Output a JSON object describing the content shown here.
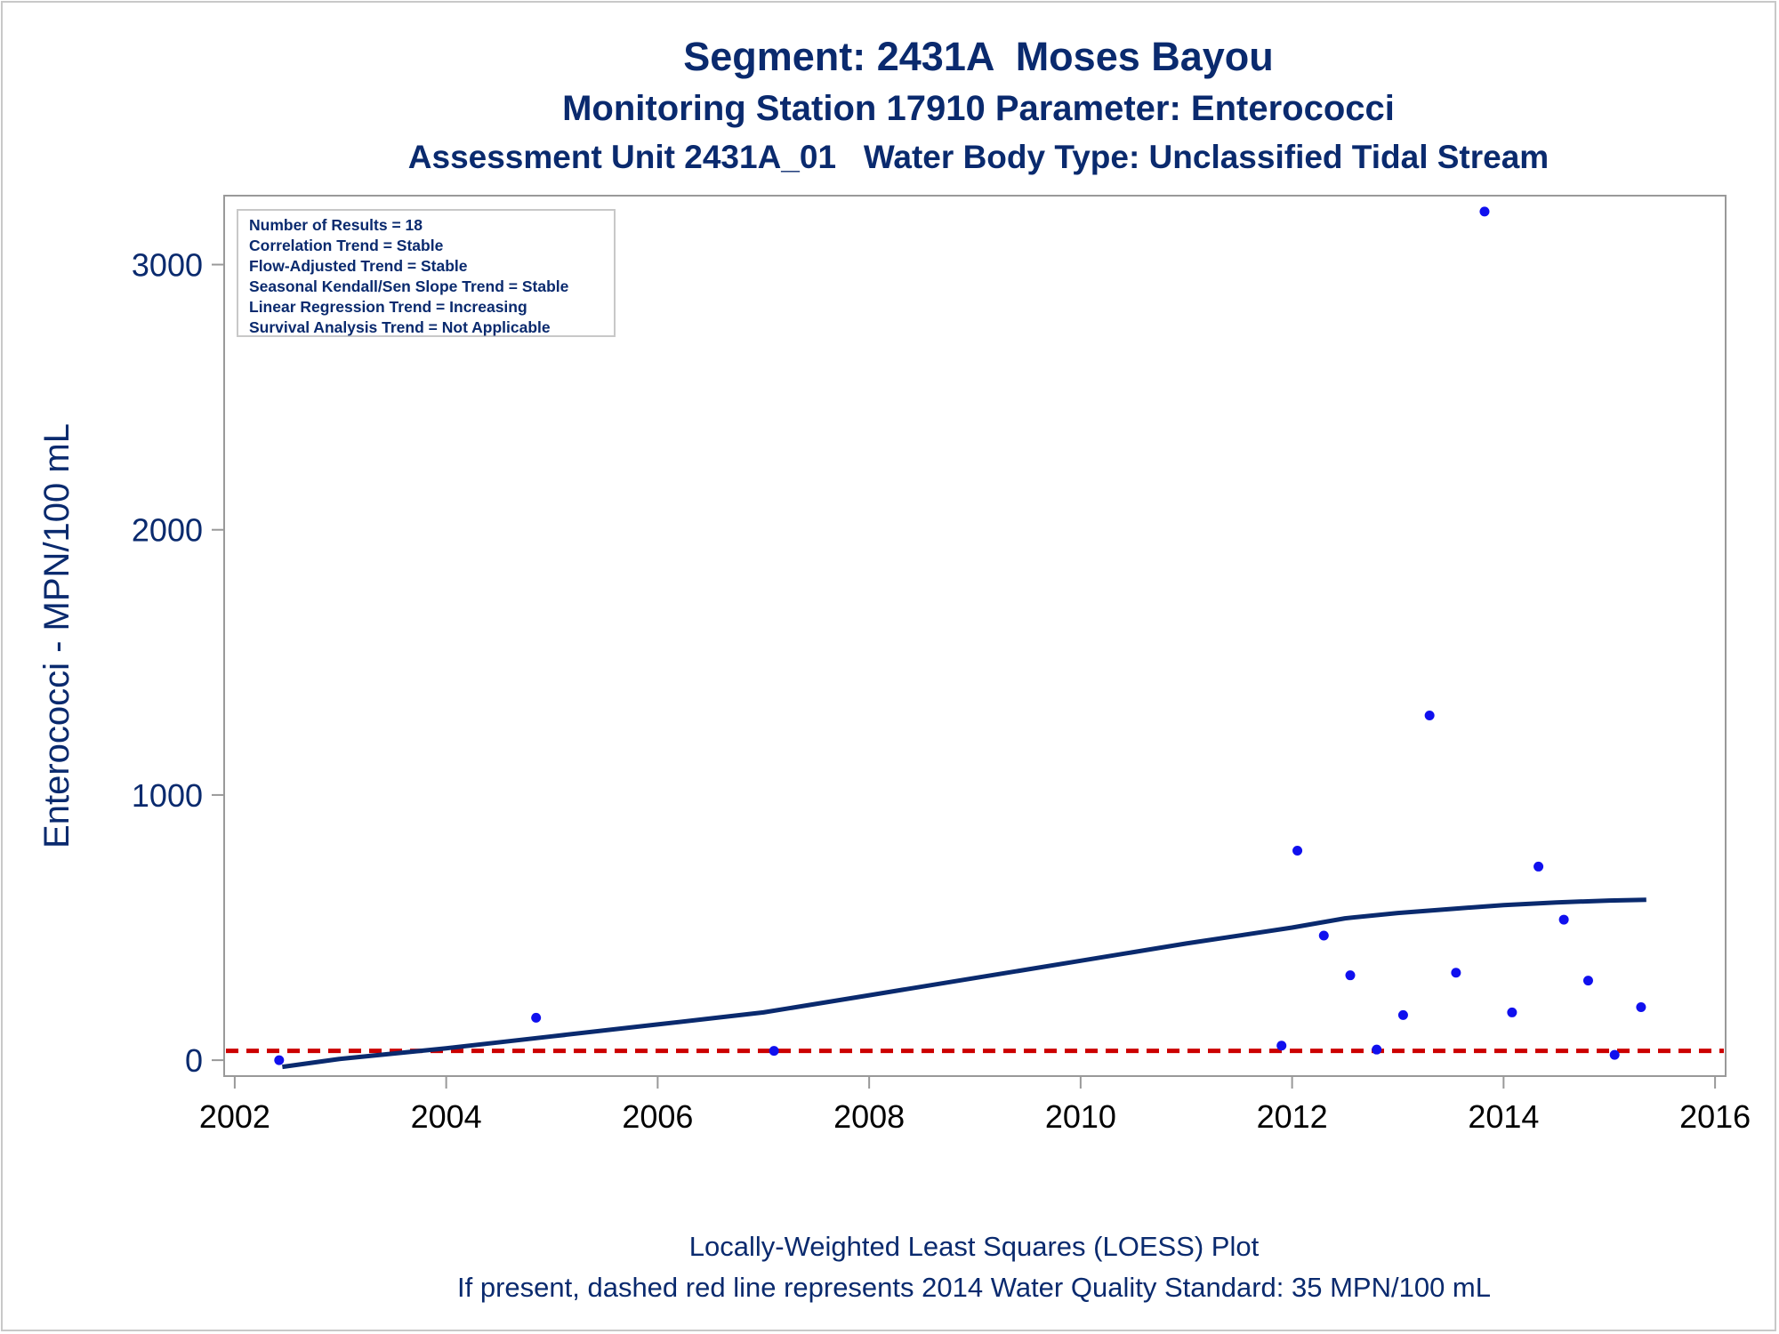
{
  "titles": {
    "line1": "Segment: 2431A  Moses Bayou",
    "line2": "Monitoring Station 17910 Parameter: Enterococci",
    "line3": "Assessment Unit 2431A_01   Water Body Type: Unclassified Tidal Stream"
  },
  "footnotes": {
    "line1": "Locally-Weighted Least Squares (LOESS) Plot",
    "line2": "If present, dashed red line represents 2014 Water Quality Standard: 35 MPN/100 mL"
  },
  "legend_box": {
    "lines": [
      "Number of Results = 18",
      "Correlation Trend = Stable",
      "Flow-Adjusted Trend = Stable",
      "Seasonal Kendall/Sen Slope Trend = Stable",
      "Linear Regression Trend = Increasing",
      "Survival Analysis Trend = Not Applicable"
    ]
  },
  "colors": {
    "text": "#0a2a6e",
    "points": "#1010ee",
    "loess": "#0a2a6e",
    "standard_line": "#cc0000",
    "axis": "#999999"
  },
  "chart_data": {
    "type": "scatter",
    "ylabel": "Enterococci - MPN/100 mL",
    "xlabel": "",
    "xlim": [
      2001.9,
      2016.1
    ],
    "ylim": [
      -60,
      3260
    ],
    "x_ticks": [
      2002,
      2004,
      2006,
      2008,
      2010,
      2012,
      2014,
      2016
    ],
    "y_ticks": [
      0,
      1000,
      2000,
      3000
    ],
    "grid": false,
    "series": [
      {
        "kind": "points",
        "x": [
          2002.42,
          2004.85,
          2007.1,
          2011.9,
          2012.05,
          2012.3,
          2012.55,
          2012.8,
          2013.05,
          2013.3,
          2013.55,
          2013.82,
          2014.08,
          2014.33,
          2014.57,
          2014.8,
          2015.05,
          2015.3
        ],
        "y": [
          0,
          160,
          35,
          55,
          790,
          470,
          320,
          40,
          170,
          1300,
          330,
          3200,
          180,
          730,
          530,
          300,
          20,
          200
        ]
      },
      {
        "kind": "loess",
        "x": [
          2002.45,
          2003,
          2004,
          2005,
          2006,
          2007,
          2008,
          2009,
          2010,
          2011,
          2012,
          2012.5,
          2013,
          2013.5,
          2014,
          2014.5,
          2015,
          2015.35
        ],
        "y": [
          -25,
          5,
          45,
          90,
          135,
          180,
          245,
          310,
          375,
          440,
          500,
          535,
          555,
          570,
          585,
          595,
          602,
          605
        ]
      },
      {
        "kind": "standard",
        "y": 35
      }
    ]
  }
}
